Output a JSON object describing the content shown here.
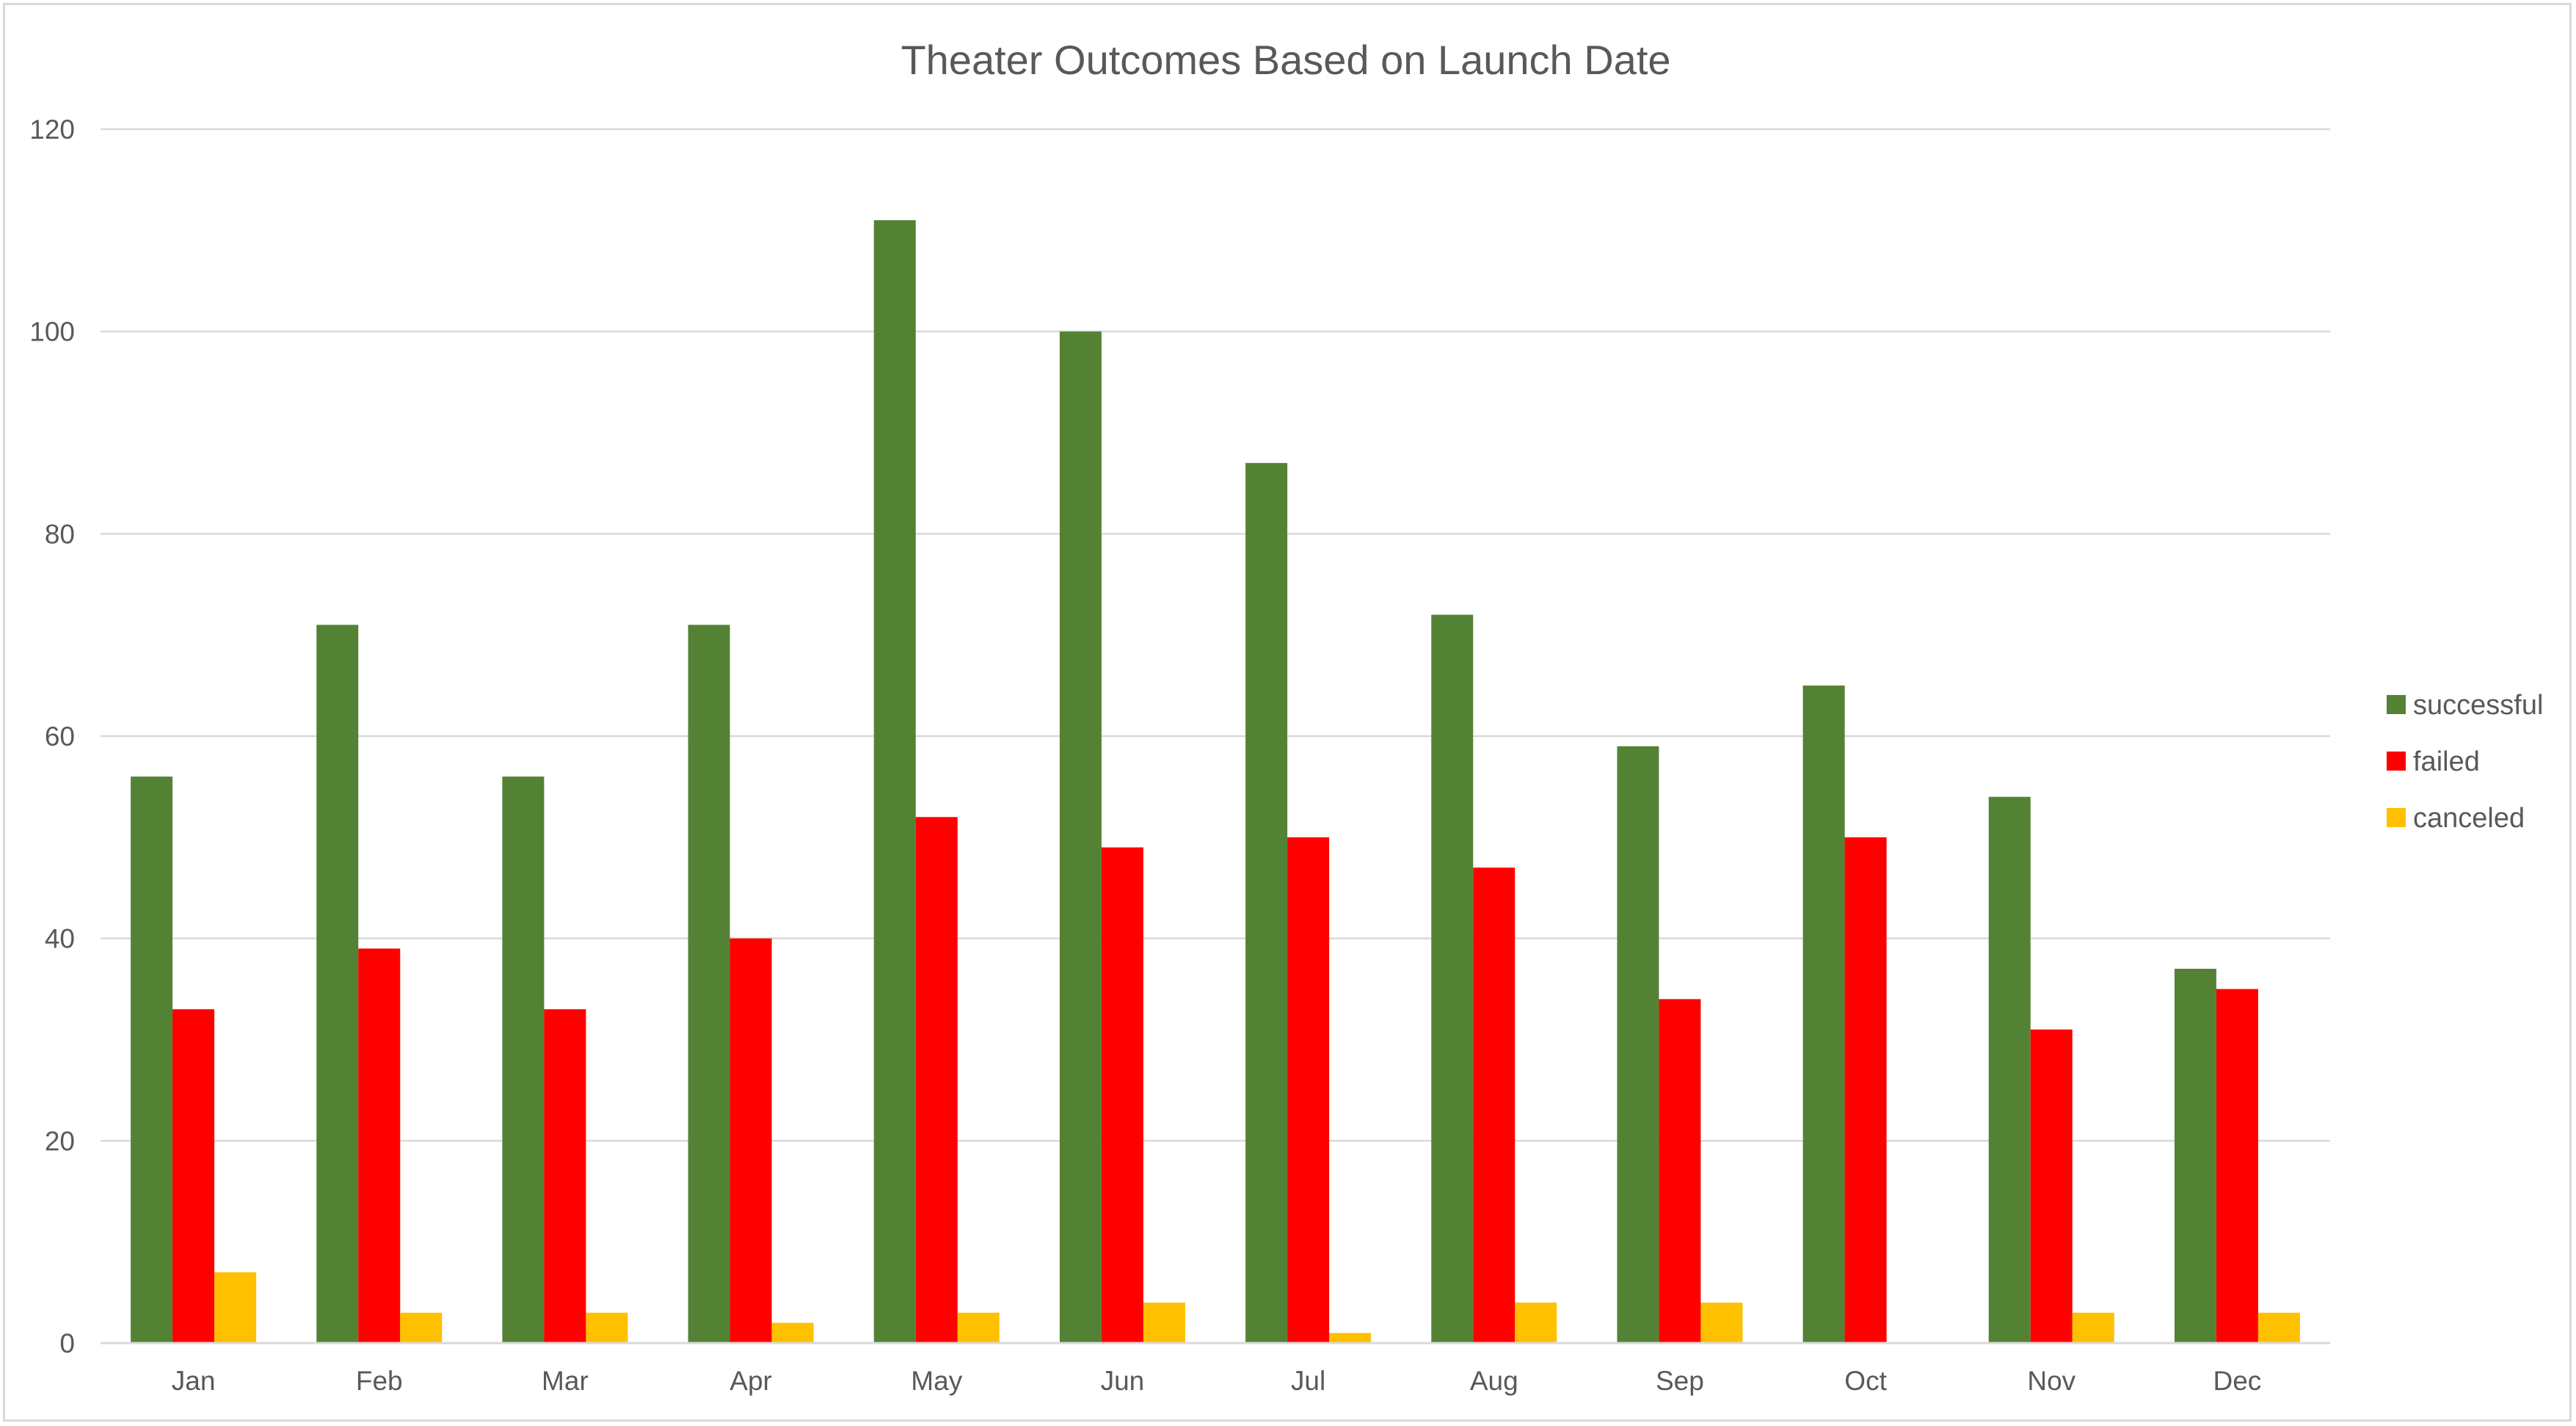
{
  "chart_data": {
    "type": "bar",
    "title": "Theater Outcomes Based on Launch Date",
    "xlabel": "",
    "ylabel": "",
    "categories": [
      "Jan",
      "Feb",
      "Mar",
      "Apr",
      "May",
      "Jun",
      "Jul",
      "Aug",
      "Sep",
      "Oct",
      "Nov",
      "Dec"
    ],
    "series": [
      {
        "name": "successful",
        "color": "#548235",
        "values": [
          56,
          71,
          56,
          71,
          111,
          100,
          87,
          72,
          59,
          65,
          54,
          37
        ]
      },
      {
        "name": "failed",
        "color": "#ff0000",
        "values": [
          33,
          39,
          33,
          40,
          52,
          49,
          50,
          47,
          34,
          50,
          31,
          35
        ]
      },
      {
        "name": "canceled",
        "color": "#ffc000",
        "values": [
          7,
          3,
          3,
          2,
          3,
          4,
          1,
          4,
          4,
          0,
          3,
          3
        ]
      }
    ],
    "ylim": [
      0,
      120
    ],
    "yticks": [
      0,
      20,
      40,
      60,
      80,
      100,
      120
    ],
    "grid": true,
    "legend_position": "right"
  }
}
